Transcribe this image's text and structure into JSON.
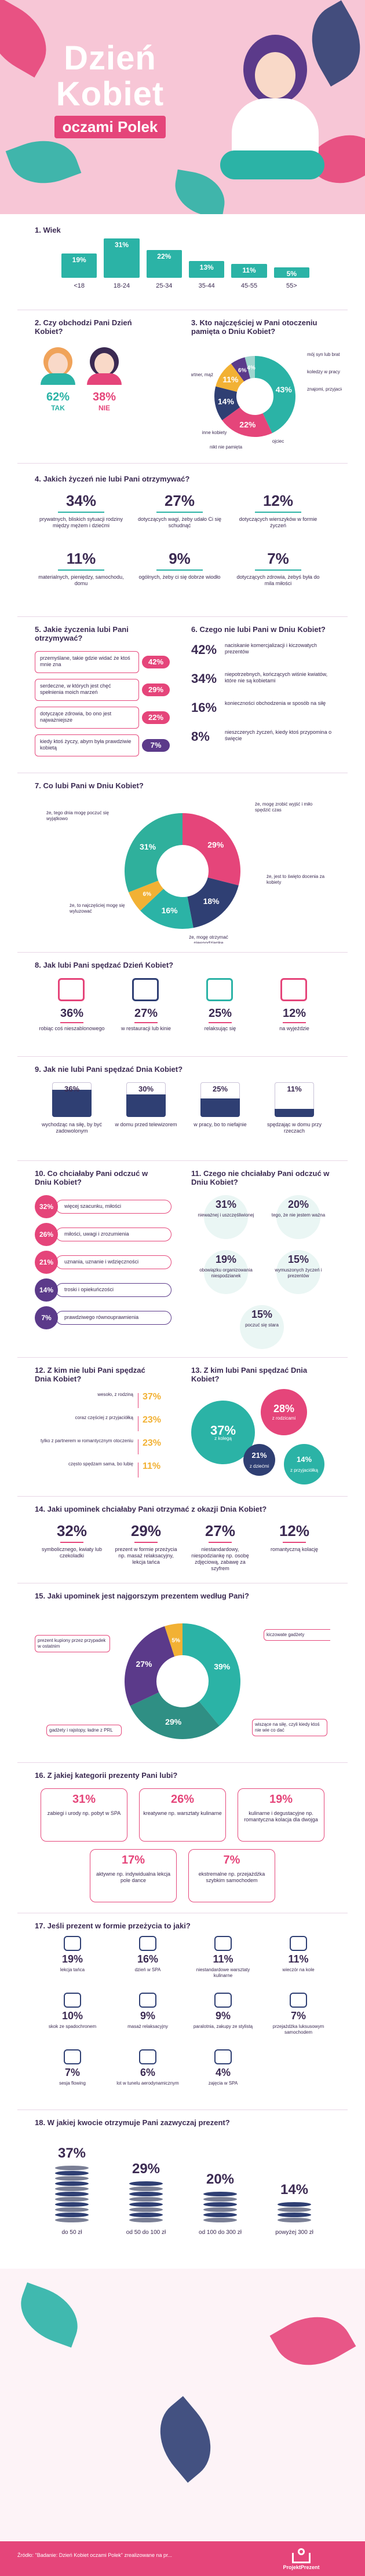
{
  "hero": {
    "title1": "Dzień",
    "title2": "Kobiet",
    "title3": "oczami Polek"
  },
  "q1": {
    "title": "1. Wiek",
    "bars": [
      {
        "pct": "19%",
        "label": "<18"
      },
      {
        "pct": "31%",
        "label": "18-24"
      },
      {
        "pct": "22%",
        "label": "25-34"
      },
      {
        "pct": "13%",
        "label": "35-44"
      },
      {
        "pct": "11%",
        "label": "45-55"
      },
      {
        "pct": "5%",
        "label": "55>"
      }
    ]
  },
  "q2": {
    "title": "2. Czy obchodzi Pani Dzień Kobiet?",
    "yes_pct": "62%",
    "yes": "TAK",
    "no_pct": "38%",
    "no": "NIE"
  },
  "q3": {
    "title": "3. Kto najczęściej w Pani otoczeniu pamięta o Dniu Kobiet?",
    "slices": [
      {
        "pct": "43%",
        "label": "mój partner, mąż"
      },
      {
        "pct": "22%",
        "label": "mój syn lub brat"
      },
      {
        "pct": "14%",
        "label": "koledzy w pracy"
      },
      {
        "pct": "11%",
        "label": "znajomi, przyjaciele"
      },
      {
        "pct": "6%",
        "label": "ojciec"
      },
      {
        "pct": "4%",
        "label": "nikt nie pamięta"
      },
      {
        "pct": "",
        "label": "inne kobiety"
      }
    ]
  },
  "q4": {
    "title": "4. Jakich życzeń nie lubi Pani otrzymywać?",
    "items": [
      {
        "pct": "34%",
        "text": "prywatnych, bliskich sytuacji rodziny między mężem i dziećmi"
      },
      {
        "pct": "27%",
        "text": "dotyczących wagi, żeby udało Ci się schudnąć"
      },
      {
        "pct": "12%",
        "text": "dotyczących wierszyków w formie życzeń"
      },
      {
        "pct": "11%",
        "text": "materialnych, pieniędzy, samochodu, domu"
      },
      {
        "pct": "9%",
        "text": "ogólnych, żeby ci się dobrze wiodło"
      },
      {
        "pct": "7%",
        "text": "dotyczących zdrowia, żebyś była do mila miłości"
      }
    ]
  },
  "q5": {
    "title": "5. Jakie życzenia lubi Pani otrzymywać?",
    "items": [
      {
        "text": "przemyślane, takie gdzie widać że ktoś mnie zna",
        "pct": "42%"
      },
      {
        "text": "serdeczne, w których jest chęć spełnienia moich marzeń",
        "pct": "29%"
      },
      {
        "text": "dotyczące zdrowia, bo ono jest najważniejsze",
        "pct": "22%"
      },
      {
        "text": "kiedy ktoś życzy, abym była prawdziwie kobietą",
        "pct": "7%"
      }
    ]
  },
  "q6": {
    "title": "6. Czego nie lubi Pani w Dniu Kobiet?",
    "items": [
      {
        "pct": "42%",
        "text": "naciskanie komercjalizacji i kiczowatych prezentów"
      },
      {
        "pct": "34%",
        "text": "niepotrzebnych, kończących wiśnie kwiatów, które nie są kobietami"
      },
      {
        "pct": "16%",
        "text": "konieczności obchodzenia w sposób na siłę"
      },
      {
        "pct": "8%",
        "text": "nieszczerych życzeń, kiedy ktoś przypomina o święcie"
      }
    ]
  },
  "q7": {
    "title": "7. Co lubi Pani w Dniu Kobiet?",
    "slices": [
      {
        "pct": "29%",
        "label": "że, mogę zrobić wyjść i miło spędzić czas"
      },
      {
        "pct": "18%",
        "label": "że, jest to święto docenia za kobiety"
      },
      {
        "pct": "16%",
        "label": "że, mogę otrzymać niespodziankę"
      },
      {
        "pct": "6%",
        "label": "że, to najczęściej mogę się wyluzować"
      },
      {
        "pct": "31%",
        "label": "że, tego dnia mogę poczuć się wyjątkowo"
      }
    ]
  },
  "q8": {
    "title": "8. Jak lubi Pani spędzać Dzień Kobiet?",
    "items": [
      {
        "pct": "36%",
        "text": "robiąc coś nieszablonowego"
      },
      {
        "pct": "27%",
        "text": "w restauracji lub kinie"
      },
      {
        "pct": "25%",
        "text": "relaksując się"
      },
      {
        "pct": "12%",
        "text": "na wyjeździe"
      }
    ]
  },
  "q9": {
    "title": "9. Jak nie lubi Pani spędzać Dnia Kobiet?",
    "items": [
      {
        "pct": "36%",
        "text": "wychodząc na siłę, by być zadowolonym"
      },
      {
        "pct": "30%",
        "text": "w domu przed telewizorem"
      },
      {
        "pct": "25%",
        "text": "w pracy, bo to niefajnie"
      },
      {
        "pct": "11%",
        "text": "spędzając w domu przy rzeczach"
      }
    ]
  },
  "q10": {
    "title": "10. Co chciałaby Pani odczuć w Dniu Kobiet?",
    "items": [
      {
        "pct": "32%",
        "text": "więcej szacunku, miłości"
      },
      {
        "pct": "26%",
        "text": "miłości, uwagi i zrozumienia"
      },
      {
        "pct": "21%",
        "text": "uznania, uznanie i wdzięczności"
      },
      {
        "pct": "14%",
        "text": "troski i opiekuńczości"
      },
      {
        "pct": "7%",
        "text": "prawdziwego równouprawnienia"
      }
    ]
  },
  "q11": {
    "title": "11. Czego nie chciałaby Pani odczuć w Dniu Kobiet?",
    "items": [
      {
        "pct": "31%",
        "text": "nieważnej i uszczęśliwionej"
      },
      {
        "pct": "20%",
        "text": "tego, że nie jestem ważna"
      },
      {
        "pct": "19%",
        "text": "obowiązku organizowania niespodzianek"
      },
      {
        "pct": "15%",
        "text": "wymuszonych życzeń i prezentów"
      },
      {
        "pct": "15%",
        "text": "poczuć się stara"
      }
    ]
  },
  "q12": {
    "title": "12. Z kim nie lubi Pani spędzać Dnia Kobiet?",
    "items": [
      {
        "text": "wesoło, z rodziną",
        "pct": "37%"
      },
      {
        "text": "coraz częściej z przyjaciółką",
        "pct": "23%"
      },
      {
        "text": "tylko z partnerem w romantycznym otoczeniu",
        "pct": "23%"
      },
      {
        "text": "często spędzam sama, bo lubię",
        "pct": "11%"
      }
    ]
  },
  "q13": {
    "title": "13. Z kim lubi Pani spędzać Dnia Kobiet?",
    "items": [
      {
        "pct": "37%",
        "text": "z kolegą"
      },
      {
        "pct": "28%",
        "text": "z rodzicami"
      },
      {
        "pct": "21%",
        "text": "z dziećmi"
      },
      {
        "pct": "14%",
        "text": "z przyjaciółką"
      }
    ]
  },
  "q14": {
    "title": "14. Jaki upominek chciałaby Pani otrzymać z okazji Dnia Kobiet?",
    "items": [
      {
        "pct": "32%",
        "text": "symbolicznego, kwiaty lub czekoladki"
      },
      {
        "pct": "29%",
        "text": "prezent w formie przeżycia np. masaż relaksacyjny, lekcja tańca"
      },
      {
        "pct": "27%",
        "text": "niestandardowy, niespodziankę np. osobę zdjęciową, zabawę za szyfrem"
      },
      {
        "pct": "12%",
        "text": "romantyczną kolację"
      }
    ]
  },
  "q15": {
    "title": "15. Jaki upominek jest najgorszym prezentem według Pani?",
    "slices": [
      {
        "pct": "39%",
        "label": "prezent kupiony przez przypadek w ostatnim"
      },
      {
        "pct": "29%",
        "label": "kiczowate gadżety"
      },
      {
        "pct": "27%",
        "label": "wiszące na siłę, czyli kiedy ktoś nie wie co dać"
      },
      {
        "pct": "5%",
        "label": "gadżety i rajstopy, ładne z PRL"
      }
    ]
  },
  "q16": {
    "title": "16. Z jakiej kategorii prezenty Pani lubi?",
    "items": [
      {
        "pct": "31%",
        "text": "zabiegi i urody np. pobyt w SPA"
      },
      {
        "pct": "26%",
        "text": "kreatywne np. warsztaty kulinarne"
      },
      {
        "pct": "19%",
        "text": "kulinarne i degustacyjne np. romantyczna kolacja dla dwojga"
      },
      {
        "pct": "17%",
        "text": "aktywne np. indywidualna lekcja pole dance"
      },
      {
        "pct": "7%",
        "text": "ekstremalne np. przejażdżka szybkim samochodem"
      }
    ]
  },
  "q17": {
    "title": "17. Jeśli prezent w formie przeżycia to jaki?",
    "items": [
      {
        "pct": "19%",
        "text": "lekcja tańca"
      },
      {
        "pct": "16%",
        "text": "dzień w SPA"
      },
      {
        "pct": "11%",
        "text": "niestandardowe warsztaty kulinarne"
      },
      {
        "pct": "11%",
        "text": "wieczór na kole"
      },
      {
        "pct": "10%",
        "text": "skok ze spadochronem"
      },
      {
        "pct": "9%",
        "text": "masaż relaksacyjny"
      },
      {
        "pct": "9%",
        "text": "paralotnia, zakupy ze stylistą"
      },
      {
        "pct": "7%",
        "text": "przejażdżka luksusowym samochodem"
      },
      {
        "pct": "7%",
        "text": "sesja flowing"
      },
      {
        "pct": "6%",
        "text": "lot w tunelu aerodynamicznym"
      },
      {
        "pct": "4%",
        "text": "zajęcia w SPA"
      },
      {
        "pct": "",
        "text": ""
      }
    ]
  },
  "q18": {
    "title": "18. W jakiej kwocie otrzymuje Pani zazwyczaj prezent?",
    "items": [
      {
        "pct": "37%",
        "text": "do 50 zł"
      },
      {
        "pct": "29%",
        "text": "od 50 do 100 zł"
      },
      {
        "pct": "20%",
        "text": "od 100 do 300 zł"
      },
      {
        "pct": "14%",
        "text": "powyżej 300 zł"
      }
    ]
  },
  "footer": {
    "note": "Źródło: \"Badanie: Dzień Kobiet oczami Polek\" zrealizowane na pr...",
    "brand": "ProjektPrezent"
  },
  "colors": {
    "pink": "#e5457a",
    "teal": "#2bb3a6",
    "navy": "#2f3f73",
    "purple": "#5b3a8a",
    "light": "#f7c6d6"
  }
}
